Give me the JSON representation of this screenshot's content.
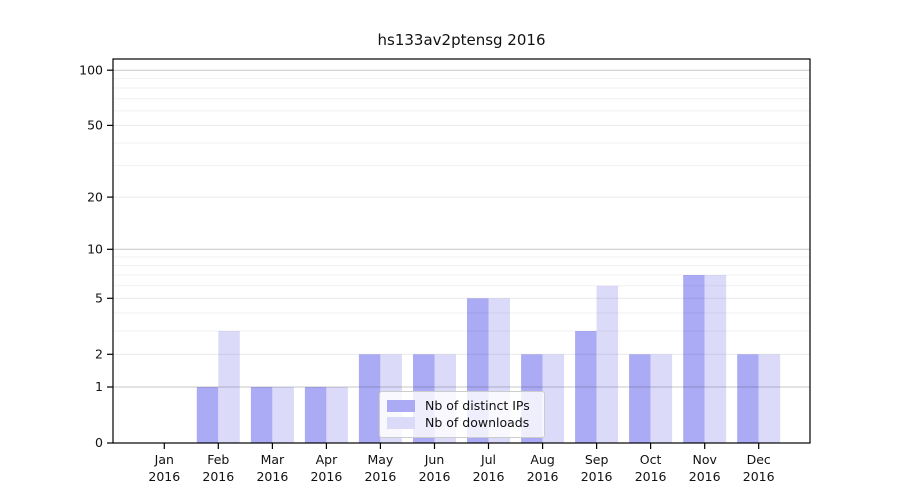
{
  "title": "hs133av2ptensg 2016",
  "chart_data": {
    "type": "bar",
    "title": "hs133av2ptensg 2016",
    "categories": [
      "Jan",
      "Feb",
      "Mar",
      "Apr",
      "May",
      "Jun",
      "Jul",
      "Aug",
      "Sep",
      "Oct",
      "Nov",
      "Dec"
    ],
    "year_label": "2016",
    "series": [
      {
        "name": "Nb of distinct IPs",
        "color": "#aaaaf5",
        "values": [
          0,
          1,
          1,
          1,
          2,
          2,
          5,
          2,
          3,
          2,
          7,
          2
        ]
      },
      {
        "name": "Nb of downloads",
        "color": "#dbdbf9",
        "values": [
          0,
          3,
          1,
          1,
          2,
          2,
          5,
          2,
          6,
          2,
          7,
          2
        ]
      }
    ],
    "yscale": "log1p",
    "ylim": [
      0,
      115
    ],
    "yticks": [
      0,
      1,
      2,
      5,
      10,
      20,
      50,
      100
    ],
    "major_gridlines": [
      1,
      10,
      100
    ],
    "minor_gridlines": [
      3,
      4,
      6,
      7,
      8,
      9,
      30,
      40,
      60,
      70,
      80,
      90
    ],
    "grid": true,
    "legend_position": "lower center",
    "axis_color": "#000000",
    "tick_label_color": "#111111"
  }
}
